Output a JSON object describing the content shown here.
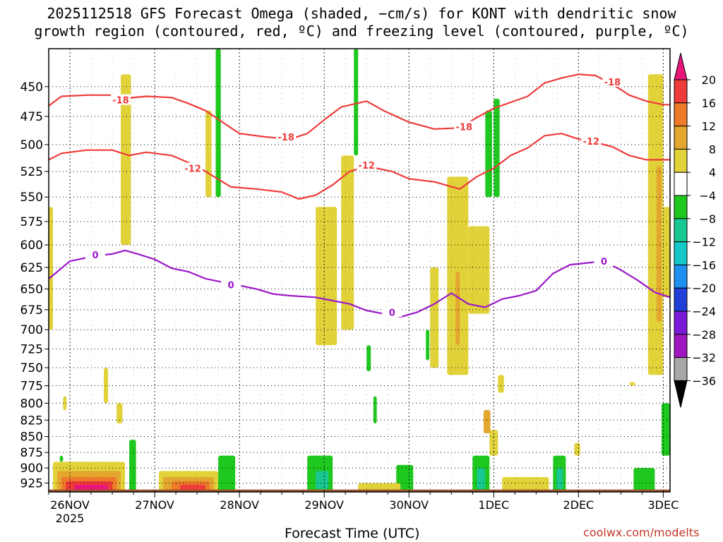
{
  "title_line1": "2025112518 GFS Forecast Omega (shaded, −cm/s) for KONT with dendritic snow",
  "title_line2": "growth region (contoured, red, ºC) and freezing level (contoured, purple, ºC)",
  "xlabel": "Forecast Time (UTC)",
  "credit": "coolwx.com/modelts",
  "chart_data": {
    "type": "heatmap",
    "title": "2025112518 GFS Forecast Omega (shaded, −cm/s) for KONT with dendritic snow growth region (contoured, red, ºC) and freezing level (contoured, purple, ºC)",
    "xlabel": "Forecast Time (UTC)",
    "ylabel": "",
    "x_ticks": [
      {
        "label": "26NOV",
        "day": 0
      },
      {
        "label": "27NOV",
        "day": 1
      },
      {
        "label": "28NOV",
        "day": 2
      },
      {
        "label": "29NOV",
        "day": 3
      },
      {
        "label": "30NOV",
        "day": 4
      },
      {
        "label": "1DEC",
        "day": 5
      },
      {
        "label": "2DEC",
        "day": 6
      },
      {
        "label": "3DEC",
        "day": 7
      }
    ],
    "year_label": "2025",
    "xlim_days": [
      -0.25,
      7.08
    ],
    "y_ticks": [
      450,
      475,
      500,
      525,
      550,
      575,
      600,
      625,
      650,
      675,
      700,
      725,
      750,
      775,
      800,
      825,
      850,
      875,
      900,
      925
    ],
    "ylim": [
      420,
      940
    ],
    "y_scale": "log-pressure (inverted)",
    "colorbar": {
      "labels": [
        "20",
        "16",
        "12",
        "8",
        "4",
        "−4",
        "−8",
        "−12",
        "−16",
        "−20",
        "−24",
        "−28",
        "−32",
        "−36"
      ],
      "bins": [
        {
          "range": ">20",
          "color": "#e8157a"
        },
        {
          "range": "16-20",
          "color": "#ef3a3a"
        },
        {
          "range": "12-16",
          "color": "#ee7a2a"
        },
        {
          "range": "8-12",
          "color": "#e3a62e"
        },
        {
          "range": "4-8",
          "color": "#e2d23a"
        },
        {
          "range": "-4-4",
          "color": "#ffffff"
        },
        {
          "range": "-8--4",
          "color": "#1ec81e"
        },
        {
          "range": "-12--8",
          "color": "#18c890"
        },
        {
          "range": "-16--12",
          "color": "#14c8c8"
        },
        {
          "range": "-20--16",
          "color": "#1f8ff0"
        },
        {
          "range": "-24--20",
          "color": "#1f3fd8"
        },
        {
          "range": "-28--24",
          "color": "#7a1ad8"
        },
        {
          "range": "-32--28",
          "color": "#a016c0"
        },
        {
          "range": "-36--32",
          "color": "#a8a8a8"
        },
        {
          "range": "<-36",
          "color": "#000000"
        }
      ]
    },
    "contours": [
      {
        "name": "-18",
        "color": "#ee3b3b",
        "points": [
          [
            -0.25,
            466
          ],
          [
            -0.1,
            458
          ],
          [
            0.2,
            457
          ],
          [
            0.5,
            457
          ],
          [
            0.6,
            460
          ],
          [
            0.9,
            458
          ],
          [
            1.2,
            459
          ],
          [
            1.4,
            464
          ],
          [
            1.6,
            470
          ],
          [
            1.8,
            480
          ],
          [
            2.0,
            490
          ],
          [
            2.3,
            493
          ],
          [
            2.6,
            495
          ],
          [
            2.8,
            490
          ],
          [
            3.0,
            478
          ],
          [
            3.2,
            467
          ],
          [
            3.5,
            462
          ],
          [
            3.7,
            470
          ],
          [
            4.0,
            480
          ],
          [
            4.3,
            486
          ],
          [
            4.6,
            485
          ],
          [
            4.8,
            476
          ],
          [
            5.0,
            468
          ],
          [
            5.2,
            463
          ],
          [
            5.4,
            458
          ],
          [
            5.6,
            447
          ],
          [
            5.8,
            443
          ],
          [
            6.0,
            440
          ],
          [
            6.2,
            441
          ],
          [
            6.4,
            448
          ],
          [
            6.6,
            457
          ],
          [
            6.8,
            462
          ],
          [
            7.0,
            465
          ],
          [
            7.08,
            465
          ]
        ],
        "labels": [
          {
            "day": 0.6,
            "p": 461,
            "text": "-18"
          },
          {
            "day": 2.55,
            "p": 493,
            "text": "-18"
          },
          {
            "day": 4.65,
            "p": 484,
            "text": "-18"
          },
          {
            "day": 6.4,
            "p": 446,
            "text": "-18"
          }
        ]
      },
      {
        "name": "-12",
        "color": "#ee3b3b",
        "points": [
          [
            -0.25,
            514
          ],
          [
            -0.1,
            508
          ],
          [
            0.2,
            505
          ],
          [
            0.5,
            505
          ],
          [
            0.7,
            510
          ],
          [
            0.9,
            507
          ],
          [
            1.2,
            510
          ],
          [
            1.5,
            520
          ],
          [
            1.7,
            530
          ],
          [
            1.9,
            540
          ],
          [
            2.2,
            542
          ],
          [
            2.5,
            545
          ],
          [
            2.7,
            552
          ],
          [
            2.9,
            548
          ],
          [
            3.1,
            538
          ],
          [
            3.3,
            525
          ],
          [
            3.5,
            520
          ],
          [
            3.8,
            525
          ],
          [
            4.0,
            532
          ],
          [
            4.3,
            535
          ],
          [
            4.6,
            542
          ],
          [
            4.8,
            530
          ],
          [
            5.0,
            522
          ],
          [
            5.2,
            510
          ],
          [
            5.4,
            503
          ],
          [
            5.6,
            492
          ],
          [
            5.8,
            490
          ],
          [
            6.0,
            495
          ],
          [
            6.2,
            498
          ],
          [
            6.4,
            502
          ],
          [
            6.6,
            510
          ],
          [
            6.8,
            514
          ],
          [
            7.08,
            514
          ]
        ],
        "labels": [
          {
            "day": 1.45,
            "p": 522,
            "text": "-12"
          },
          {
            "day": 3.5,
            "p": 519,
            "text": "-12"
          },
          {
            "day": 6.15,
            "p": 497,
            "text": "-12"
          }
        ]
      },
      {
        "name": "0",
        "color": "#9a18c8",
        "points": [
          [
            -0.25,
            638
          ],
          [
            -0.15,
            630
          ],
          [
            0.0,
            618
          ],
          [
            0.3,
            612
          ],
          [
            0.5,
            610
          ],
          [
            0.65,
            606
          ],
          [
            0.8,
            610
          ],
          [
            1.0,
            616
          ],
          [
            1.2,
            626
          ],
          [
            1.4,
            630
          ],
          [
            1.6,
            638
          ],
          [
            1.8,
            642
          ],
          [
            2.0,
            646
          ],
          [
            2.2,
            650
          ],
          [
            2.4,
            656
          ],
          [
            2.6,
            658
          ],
          [
            2.9,
            660
          ],
          [
            3.1,
            664
          ],
          [
            3.3,
            668
          ],
          [
            3.5,
            676
          ],
          [
            3.7,
            680
          ],
          [
            3.9,
            684
          ],
          [
            4.1,
            678
          ],
          [
            4.3,
            668
          ],
          [
            4.5,
            655
          ],
          [
            4.7,
            668
          ],
          [
            4.9,
            672
          ],
          [
            5.1,
            662
          ],
          [
            5.3,
            658
          ],
          [
            5.5,
            652
          ],
          [
            5.7,
            632
          ],
          [
            5.9,
            622
          ],
          [
            6.1,
            620
          ],
          [
            6.3,
            618
          ],
          [
            6.5,
            628
          ],
          [
            6.7,
            640
          ],
          [
            6.9,
            654
          ],
          [
            7.08,
            660
          ]
        ],
        "labels": [
          {
            "day": 0.3,
            "p": 611,
            "text": "0"
          },
          {
            "day": 1.9,
            "p": 645,
            "text": "0"
          },
          {
            "day": 3.8,
            "p": 678,
            "text": "0"
          },
          {
            "day": 6.3,
            "p": 618,
            "text": "0"
          }
        ]
      }
    ],
    "shaded_regions": [
      {
        "bin": "4-8",
        "day": [
          -0.25,
          -0.2
        ],
        "p": [
          560,
          700
        ]
      },
      {
        "bin": "4-8",
        "day": [
          0.6,
          0.72
        ],
        "p": [
          440,
          600
        ]
      },
      {
        "bin": "4-8",
        "day": [
          0.55,
          0.62
        ],
        "p": [
          800,
          830
        ]
      },
      {
        "bin": "4-8",
        "day": [
          0.4,
          0.45
        ],
        "p": [
          750,
          800
        ]
      },
      {
        "bin": "-8--4",
        "day": [
          1.72,
          1.78
        ],
        "p": [
          420,
          550
        ]
      },
      {
        "bin": "4-8",
        "day": [
          1.6,
          1.67
        ],
        "p": [
          470,
          550
        ]
      },
      {
        "bin": "4-8",
        "day": [
          2.9,
          3.15
        ],
        "p": [
          560,
          720
        ]
      },
      {
        "bin": "4-8",
        "day": [
          3.2,
          3.35
        ],
        "p": [
          510,
          700
        ]
      },
      {
        "bin": "-8--4",
        "day": [
          3.35,
          3.4
        ],
        "p": [
          420,
          510
        ]
      },
      {
        "bin": "-8--4",
        "day": [
          3.5,
          3.55
        ],
        "p": [
          720,
          755
        ]
      },
      {
        "bin": "4-8",
        "day": [
          4.25,
          4.35
        ],
        "p": [
          625,
          750
        ]
      },
      {
        "bin": "4-8",
        "day": [
          4.45,
          4.7
        ],
        "p": [
          530,
          760
        ]
      },
      {
        "bin": "8-12",
        "day": [
          4.55,
          4.6
        ],
        "p": [
          630,
          720
        ]
      },
      {
        "bin": "4-8",
        "day": [
          4.7,
          4.95
        ],
        "p": [
          580,
          680
        ]
      },
      {
        "bin": "-8--4",
        "day": [
          4.9,
          4.98
        ],
        "p": [
          470,
          550
        ]
      },
      {
        "bin": "-8--4",
        "day": [
          5.0,
          5.07
        ],
        "p": [
          460,
          550
        ]
      },
      {
        "bin": "4-8",
        "day": [
          5.05,
          5.12
        ],
        "p": [
          760,
          785
        ]
      },
      {
        "bin": "4-8",
        "day": [
          4.95,
          5.05
        ],
        "p": [
          840,
          880
        ]
      },
      {
        "bin": "8-12",
        "day": [
          4.88,
          4.96
        ],
        "p": [
          810,
          845
        ]
      },
      {
        "bin": "4-8",
        "day": [
          6.6,
          6.67
        ],
        "p": [
          770,
          775
        ]
      },
      {
        "bin": "4-8",
        "day": [
          5.95,
          6.02
        ],
        "p": [
          860,
          880
        ]
      },
      {
        "bin": "4-8",
        "day": [
          6.82,
          7.0
        ],
        "p": [
          440,
          760
        ]
      },
      {
        "bin": "8-12",
        "day": [
          6.92,
          6.98
        ],
        "p": [
          520,
          690
        ]
      },
      {
        "bin": "4-8",
        "day": [
          7.0,
          7.08
        ],
        "p": [
          560,
          660
        ]
      },
      {
        "bin": "-8--4",
        "day": [
          6.98,
          7.08
        ],
        "p": [
          800,
          880
        ]
      },
      {
        "bin": "-8--4",
        "day": [
          4.2,
          4.24
        ],
        "p": [
          700,
          740
        ]
      },
      {
        "bin": "-8--4",
        "day": [
          3.58,
          3.62
        ],
        "p": [
          790,
          830
        ]
      },
      {
        "bin": "4-8",
        "day": [
          -0.08,
          -0.04
        ],
        "p": [
          790,
          810
        ]
      },
      {
        "bin": "-8--4",
        "day": [
          -0.12,
          -0.08
        ],
        "p": [
          880,
          890
        ]
      }
    ],
    "low_level": [
      {
        "bin": "4-8",
        "day": [
          -0.2,
          0.65
        ],
        "p": [
          890,
          940
        ]
      },
      {
        "bin": "8-12",
        "day": [
          -0.15,
          0.6
        ],
        "p": [
          905,
          940
        ]
      },
      {
        "bin": "12-16",
        "day": [
          -0.1,
          0.55
        ],
        "p": [
          915,
          940
        ]
      },
      {
        "bin": "16-20",
        "day": [
          -0.05,
          0.5
        ],
        "p": [
          922,
          940
        ]
      },
      {
        "bin": ">20",
        "day": [
          0.05,
          0.45
        ],
        "p": [
          928,
          940
        ]
      },
      {
        "bin": "4-8",
        "day": [
          1.05,
          1.75
        ],
        "p": [
          905,
          940
        ]
      },
      {
        "bin": "8-12",
        "day": [
          1.1,
          1.7
        ],
        "p": [
          915,
          940
        ]
      },
      {
        "bin": "12-16",
        "day": [
          1.2,
          1.65
        ],
        "p": [
          922,
          940
        ]
      },
      {
        "bin": "16-20",
        "day": [
          1.3,
          1.6
        ],
        "p": [
          928,
          940
        ]
      },
      {
        "bin": "-8--4",
        "day": [
          0.7,
          0.78
        ],
        "p": [
          855,
          940
        ]
      },
      {
        "bin": "-8--4",
        "day": [
          1.75,
          1.95
        ],
        "p": [
          880,
          940
        ]
      },
      {
        "bin": "-8--4",
        "day": [
          2.8,
          3.1
        ],
        "p": [
          880,
          940
        ]
      },
      {
        "bin": "-12--8",
        "day": [
          2.9,
          3.05
        ],
        "p": [
          905,
          935
        ]
      },
      {
        "bin": "-8--4",
        "day": [
          3.85,
          4.05
        ],
        "p": [
          895,
          940
        ]
      },
      {
        "bin": "-8--4",
        "day": [
          4.75,
          4.95
        ],
        "p": [
          880,
          940
        ]
      },
      {
        "bin": "-12--8",
        "day": [
          4.8,
          4.9
        ],
        "p": [
          900,
          935
        ]
      },
      {
        "bin": "-8--4",
        "day": [
          5.7,
          5.85
        ],
        "p": [
          880,
          940
        ]
      },
      {
        "bin": "-12--8",
        "day": [
          5.74,
          5.82
        ],
        "p": [
          900,
          935
        ]
      },
      {
        "bin": "-8--4",
        "day": [
          6.65,
          6.9
        ],
        "p": [
          900,
          940
        ]
      },
      {
        "bin": "4-8",
        "day": [
          5.1,
          5.65
        ],
        "p": [
          915,
          940
        ]
      },
      {
        "bin": "4-8",
        "day": [
          3.4,
          3.9
        ],
        "p": [
          925,
          940
        ]
      }
    ],
    "ground": {
      "color": "#a0522d",
      "p": [
        936,
        945
      ]
    }
  }
}
